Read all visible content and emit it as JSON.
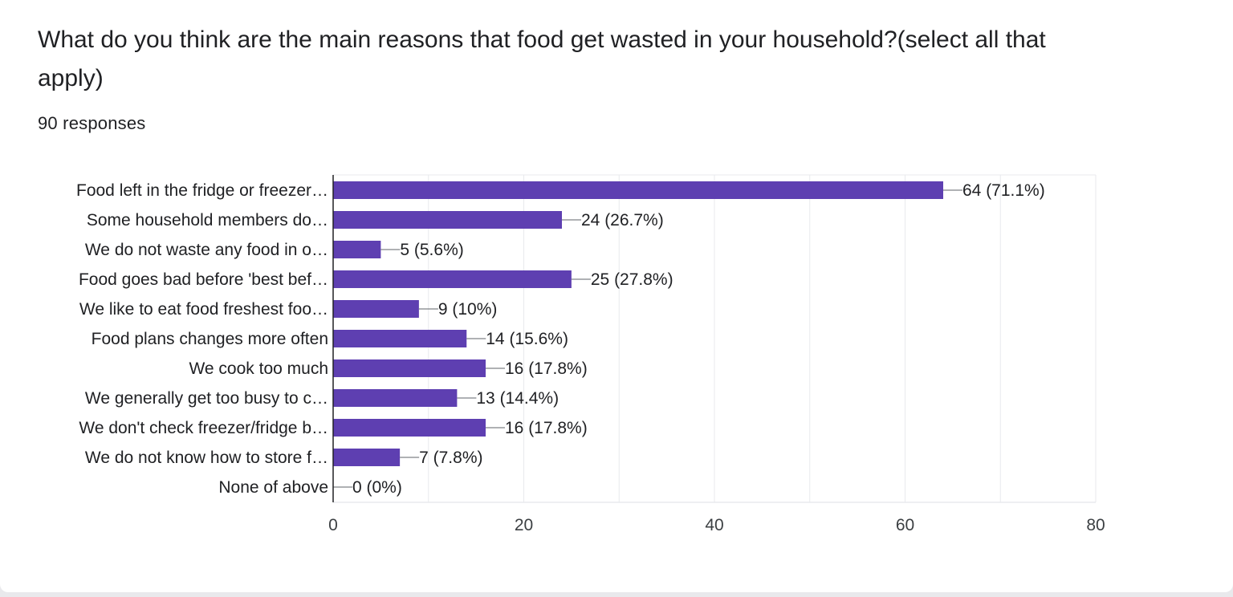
{
  "question": {
    "title": "What do you think are the main reasons that food get wasted in your household?(select all that apply)",
    "responses_label": "90 responses"
  },
  "colors": {
    "bar": "#5e3fb1",
    "grid": "#e8eaed",
    "axis": "#202124",
    "text": "#202124",
    "connector": "#5f6368"
  },
  "chart_data": {
    "type": "bar",
    "orientation": "horizontal",
    "categories": [
      "Food left in the fridge or freezer…",
      "Some household members do…",
      "We do not waste any food in o…",
      "Food goes bad before 'best bef…",
      "We like to eat food freshest foo…",
      "Food plans changes more often",
      "We cook too much",
      "We generally get too busy to c…",
      "We don't check freezer/fridge b…",
      "We do not know how to store f…",
      "None of above"
    ],
    "values": [
      64,
      24,
      5,
      25,
      9,
      14,
      16,
      13,
      16,
      7,
      0
    ],
    "data_labels": [
      "64 (71.1%)",
      "24 (26.7%)",
      "5 (5.6%)",
      "25 (27.8%)",
      "9 (10%)",
      "14 (15.6%)",
      "16 (17.8%)",
      "13 (14.4%)",
      "16 (17.8%)",
      "7 (7.8%)",
      "0 (0%)"
    ],
    "xlim": [
      0,
      80
    ],
    "x_ticks": [
      0,
      20,
      40,
      60,
      80
    ],
    "x_tick_labels": [
      "0",
      "20",
      "40",
      "60",
      "80"
    ],
    "grid": true,
    "minor_grid_step": 10,
    "legend": "none"
  }
}
